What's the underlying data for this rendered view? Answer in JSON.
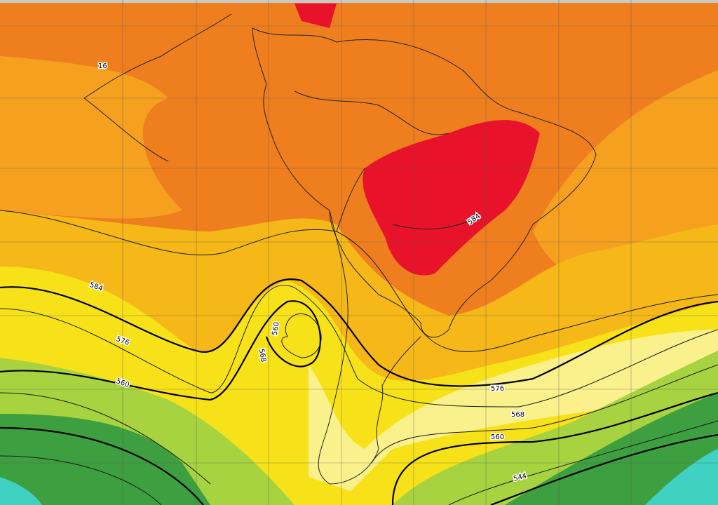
{
  "contour_labels": [
    "16",
    "584",
    "576",
    "560",
    "560",
    "568",
    "584",
    "576",
    "568",
    "560",
    "544"
  ]
}
